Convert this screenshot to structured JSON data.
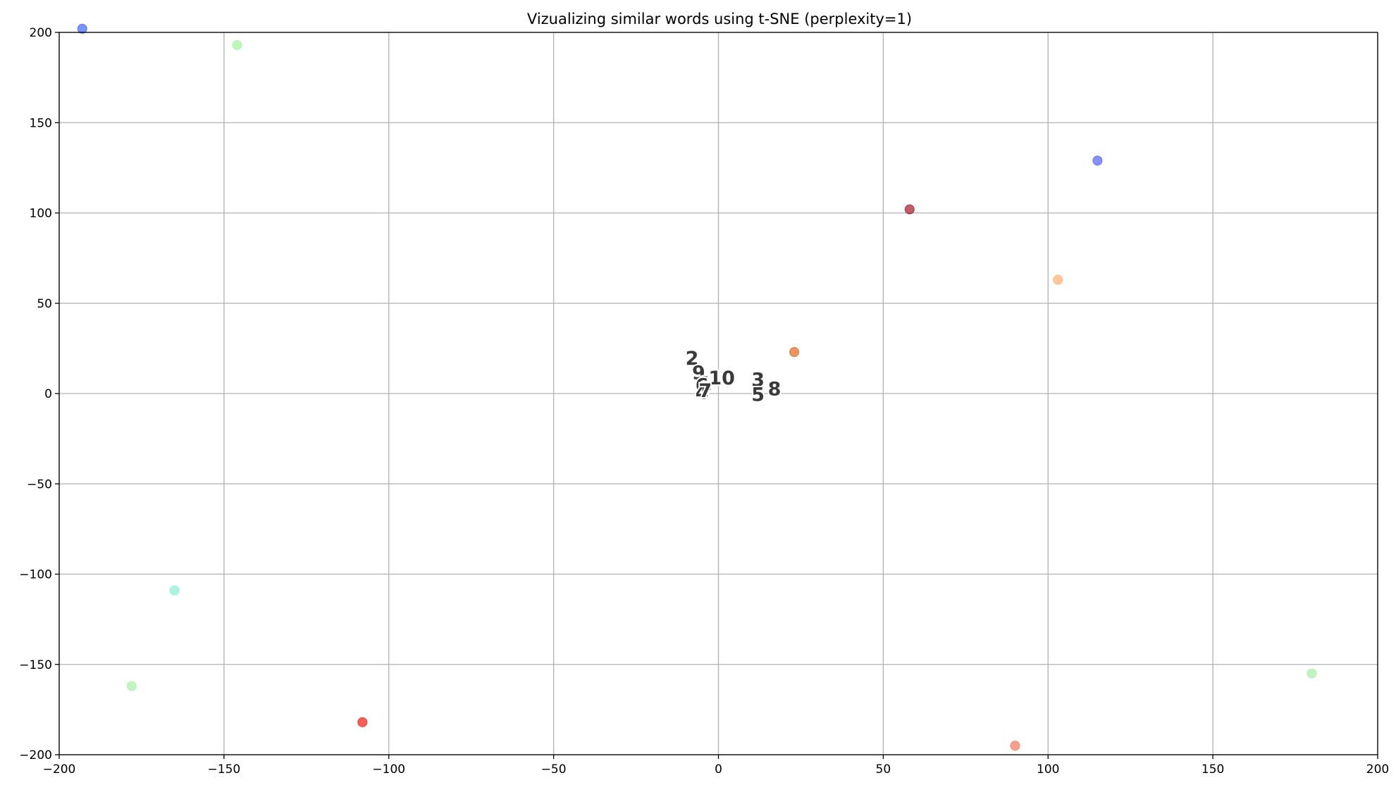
{
  "chart_data": {
    "type": "scatter",
    "title": "Vizualizing similar words using t-SNE (perplexity=1)",
    "xlabel": "",
    "ylabel": "",
    "xlim": [
      -200,
      200
    ],
    "ylim": [
      -200,
      200
    ],
    "x_ticks": [
      -200,
      -150,
      -100,
      -50,
      0,
      50,
      100,
      150,
      200
    ],
    "y_ticks": [
      -200,
      -150,
      -100,
      -50,
      0,
      50,
      100,
      150,
      200
    ],
    "x_tick_labels": [
      "−200",
      "−150",
      "−100",
      "−50",
      "0",
      "50",
      "100",
      "150",
      "200"
    ],
    "y_tick_labels": [
      "−200",
      "−150",
      "−100",
      "−50",
      "0",
      "50",
      "100",
      "150",
      "200"
    ],
    "grid": true,
    "points": [
      {
        "x": -193,
        "y": 202,
        "color": "#4f6ff0"
      },
      {
        "x": -146,
        "y": 193,
        "color": "#a8f5a0"
      },
      {
        "x": 115,
        "y": 129,
        "color": "#5f6cf5"
      },
      {
        "x": 58,
        "y": 102,
        "color": "#a52a35"
      },
      {
        "x": 103,
        "y": 63,
        "color": "#ffb27a"
      },
      {
        "x": 23,
        "y": 23,
        "color": "#e2722e"
      },
      {
        "x": -165,
        "y": -109,
        "color": "#8ef0d6"
      },
      {
        "x": -178,
        "y": -162,
        "color": "#aef2b0"
      },
      {
        "x": -108,
        "y": -182,
        "color": "#ef2b20"
      },
      {
        "x": 90,
        "y": -195,
        "color": "#f8806a"
      },
      {
        "x": 180,
        "y": -155,
        "color": "#a9efb0"
      }
    ],
    "labels": [
      {
        "text": "2",
        "x": -8,
        "y": 16
      },
      {
        "text": "9",
        "x": -6,
        "y": 8
      },
      {
        "text": "10",
        "x": 1,
        "y": 5
      },
      {
        "text": "3",
        "x": 12,
        "y": 4
      },
      {
        "text": "1",
        "x": -4,
        "y": 2
      },
      {
        "text": "6",
        "x": -5,
        "y": 1
      },
      {
        "text": "4",
        "x": -5,
        "y": -3
      },
      {
        "text": "7",
        "x": -4,
        "y": -2
      },
      {
        "text": "5",
        "x": 12,
        "y": -4
      },
      {
        "text": "8",
        "x": 17,
        "y": -1
      }
    ]
  }
}
